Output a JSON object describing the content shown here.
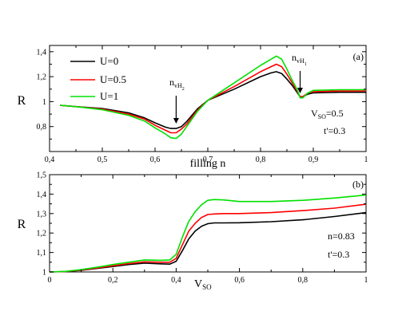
{
  "chart_data": [
    {
      "type": "line",
      "panel_label": "(a)",
      "xlabel": "filling n",
      "ylabel": "R",
      "xlim": [
        0.4,
        1.0
      ],
      "ylim": [
        0.6,
        1.45
      ],
      "x_ticks": [
        0.4,
        0.5,
        0.6,
        0.7,
        0.8,
        0.9,
        1.0
      ],
      "x_tick_labels": [
        "0,4",
        "0,5",
        "0,6",
        "0,7",
        "0,8",
        "0,9",
        "1"
      ],
      "y_ticks": [
        0.8,
        1.0,
        1.2,
        1.4
      ],
      "y_tick_labels": [
        "0,8",
        "1",
        "1,2",
        "1,4"
      ],
      "legend": {
        "position": "top-left",
        "entries": [
          "U=0",
          "U=0.5",
          "U=1"
        ]
      },
      "annotations": {
        "param1_main": "V",
        "param1_sub": "SO",
        "param1_rest": "=0.5",
        "param2": "t'=0.3",
        "vh2_main": "n",
        "vh2_sub": "vH",
        "vh2_subsub": "2",
        "vh2_x": 0.64,
        "vh1_main": "n",
        "vh1_sub": "vH",
        "vh1_subsub": "1",
        "vh1_x": 0.875
      },
      "series": [
        {
          "name": "U=0",
          "color": "#000000",
          "x": [
            0.42,
            0.45,
            0.5,
            0.55,
            0.58,
            0.6,
            0.62,
            0.63,
            0.64,
            0.65,
            0.66,
            0.68,
            0.7,
            0.75,
            0.8,
            0.82,
            0.83,
            0.84,
            0.85,
            0.86,
            0.87,
            0.875,
            0.88,
            0.89,
            0.9,
            0.95,
            1.0
          ],
          "y": [
            0.97,
            0.96,
            0.945,
            0.91,
            0.87,
            0.83,
            0.795,
            0.785,
            0.785,
            0.8,
            0.84,
            0.94,
            1.01,
            1.1,
            1.2,
            1.23,
            1.24,
            1.225,
            1.18,
            1.13,
            1.07,
            1.04,
            1.04,
            1.06,
            1.07,
            1.075,
            1.075
          ]
        },
        {
          "name": "U=0.5",
          "color": "#ff0000",
          "x": [
            0.42,
            0.45,
            0.5,
            0.55,
            0.58,
            0.6,
            0.62,
            0.63,
            0.64,
            0.65,
            0.66,
            0.68,
            0.7,
            0.75,
            0.8,
            0.82,
            0.83,
            0.84,
            0.85,
            0.86,
            0.87,
            0.875,
            0.88,
            0.89,
            0.9,
            0.95,
            1.0
          ],
          "y": [
            0.97,
            0.96,
            0.94,
            0.9,
            0.86,
            0.81,
            0.77,
            0.75,
            0.75,
            0.78,
            0.82,
            0.93,
            1.01,
            1.12,
            1.24,
            1.28,
            1.3,
            1.28,
            1.22,
            1.15,
            1.08,
            1.04,
            1.04,
            1.07,
            1.08,
            1.085,
            1.085
          ]
        },
        {
          "name": "U=1",
          "color": "#00e000",
          "x": [
            0.42,
            0.45,
            0.5,
            0.55,
            0.58,
            0.6,
            0.62,
            0.63,
            0.64,
            0.65,
            0.66,
            0.68,
            0.7,
            0.75,
            0.8,
            0.82,
            0.83,
            0.84,
            0.85,
            0.86,
            0.87,
            0.875,
            0.88,
            0.89,
            0.9,
            0.95,
            1.0
          ],
          "y": [
            0.97,
            0.96,
            0.935,
            0.89,
            0.845,
            0.79,
            0.74,
            0.71,
            0.705,
            0.74,
            0.8,
            0.92,
            1.01,
            1.15,
            1.29,
            1.34,
            1.365,
            1.34,
            1.26,
            1.17,
            1.09,
            1.03,
            1.03,
            1.07,
            1.09,
            1.095,
            1.095
          ]
        }
      ]
    },
    {
      "type": "line",
      "panel_label": "(b)",
      "xlabel_main": "V",
      "xlabel_sub": "SO",
      "ylabel": "R",
      "xlim": [
        0,
        1.0
      ],
      "ylim": [
        1.0,
        1.5
      ],
      "x_ticks": [
        0,
        0.2,
        0.4,
        0.6,
        0.8,
        1.0
      ],
      "x_tick_labels": [
        "0",
        "0,2",
        "0,4",
        "0,6",
        "0,8",
        "1"
      ],
      "y_ticks": [
        1.0,
        1.1,
        1.2,
        1.3,
        1.4,
        1.5
      ],
      "y_tick_labels": [
        "1",
        "1,1",
        "1,2",
        "1,3",
        "1,4",
        "1,5"
      ],
      "annotations": {
        "param1": "n=0.83",
        "param2": "t'=0.3"
      },
      "series": [
        {
          "name": "U=0",
          "color": "#000000",
          "x": [
            0,
            0.05,
            0.1,
            0.15,
            0.2,
            0.25,
            0.3,
            0.35,
            0.38,
            0.4,
            0.42,
            0.44,
            0.46,
            0.48,
            0.5,
            0.52,
            0.55,
            0.6,
            0.7,
            0.8,
            0.9,
            1.0
          ],
          "y": [
            1.0,
            1.002,
            1.008,
            1.018,
            1.028,
            1.038,
            1.045,
            1.042,
            1.04,
            1.055,
            1.11,
            1.17,
            1.21,
            1.235,
            1.248,
            1.252,
            1.252,
            1.253,
            1.258,
            1.268,
            1.285,
            1.305
          ]
        },
        {
          "name": "U=0.5",
          "color": "#ff0000",
          "x": [
            0,
            0.05,
            0.1,
            0.15,
            0.2,
            0.25,
            0.3,
            0.35,
            0.38,
            0.4,
            0.42,
            0.44,
            0.46,
            0.48,
            0.5,
            0.52,
            0.55,
            0.6,
            0.7,
            0.8,
            0.9,
            1.0
          ],
          "y": [
            1.0,
            1.002,
            1.01,
            1.02,
            1.032,
            1.043,
            1.052,
            1.05,
            1.05,
            1.07,
            1.14,
            1.21,
            1.25,
            1.28,
            1.295,
            1.298,
            1.3,
            1.3,
            1.305,
            1.315,
            1.328,
            1.348
          ]
        },
        {
          "name": "U=1",
          "color": "#00e000",
          "x": [
            0,
            0.05,
            0.1,
            0.15,
            0.2,
            0.25,
            0.3,
            0.35,
            0.38,
            0.4,
            0.42,
            0.44,
            0.46,
            0.48,
            0.5,
            0.52,
            0.55,
            0.6,
            0.7,
            0.8,
            0.9,
            1.0
          ],
          "y": [
            1.0,
            1.003,
            1.012,
            1.024,
            1.038,
            1.05,
            1.062,
            1.06,
            1.062,
            1.09,
            1.18,
            1.26,
            1.31,
            1.345,
            1.368,
            1.372,
            1.37,
            1.362,
            1.362,
            1.368,
            1.38,
            1.395
          ]
        }
      ]
    }
  ]
}
